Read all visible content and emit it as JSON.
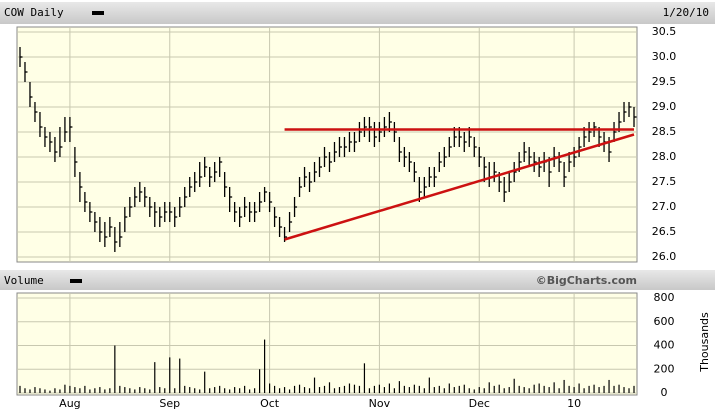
{
  "chart_data": [
    {
      "type": "ohlc",
      "title": "COW Daily",
      "date_label": "1/20/10",
      "color": "#000000",
      "xlim": [
        -0.6,
        123.6
      ],
      "ylim": [
        25.9,
        30.6
      ],
      "yticks": [
        30.5,
        {
          "value": 30,
          "label": "30.0"
        },
        29.5,
        {
          "value": 29,
          "label": "29.0"
        },
        28.5,
        {
          "value": 28,
          "label": "28.0"
        },
        27.5,
        {
          "value": 27,
          "label": "27.0"
        },
        26.5,
        {
          "value": 26,
          "label": "26.0"
        }
      ],
      "grid": true,
      "high": [
        30.2,
        29.9,
        29.5,
        29.1,
        28.9,
        28.6,
        28.5,
        28.4,
        28.6,
        28.8,
        28.8,
        28.2,
        27.7,
        27.3,
        27.1,
        26.9,
        26.8,
        26.7,
        26.8,
        26.6,
        26.7,
        27.0,
        27.2,
        27.4,
        27.5,
        27.4,
        27.2,
        27.1,
        27.0,
        27.1,
        27.1,
        27.0,
        27.2,
        27.4,
        27.6,
        27.7,
        27.9,
        28.0,
        27.8,
        27.9,
        28.0,
        27.7,
        27.4,
        27.1,
        27.0,
        27.2,
        27.1,
        27.1,
        27.3,
        27.4,
        27.3,
        27.0,
        26.8,
        26.6,
        26.9,
        27.2,
        27.6,
        27.8,
        27.7,
        27.9,
        28.0,
        28.2,
        28.1,
        28.3,
        28.4,
        28.4,
        28.5,
        28.5,
        28.7,
        28.8,
        28.8,
        28.7,
        28.7,
        28.8,
        28.9,
        28.7,
        28.4,
        28.2,
        28.1,
        27.9,
        27.6,
        27.6,
        27.8,
        27.8,
        28.1,
        28.2,
        28.4,
        28.6,
        28.6,
        28.5,
        28.6,
        28.4,
        28.2,
        28.0,
        27.9,
        27.9,
        27.7,
        27.6,
        27.7,
        27.9,
        28.1,
        28.3,
        28.2,
        28.1,
        28.0,
        28.1,
        28.0,
        28.2,
        28.1,
        27.9,
        28.1,
        28.2,
        28.4,
        28.6,
        28.7,
        28.7,
        28.6,
        28.5,
        28.4,
        28.7,
        28.9,
        29.1,
        29.1,
        29.0
      ],
      "low": [
        29.8,
        29.5,
        29.0,
        28.7,
        28.4,
        28.2,
        28.1,
        27.9,
        28.0,
        28.3,
        28.3,
        27.6,
        27.1,
        26.9,
        26.7,
        26.5,
        26.3,
        26.2,
        26.4,
        26.1,
        26.2,
        26.5,
        26.8,
        27.0,
        27.1,
        27.0,
        26.8,
        26.6,
        26.6,
        26.7,
        26.7,
        26.6,
        26.8,
        27.0,
        27.2,
        27.3,
        27.4,
        27.6,
        27.4,
        27.5,
        27.6,
        27.2,
        26.9,
        26.7,
        26.6,
        26.8,
        26.7,
        26.7,
        26.9,
        27.1,
        26.9,
        26.6,
        26.4,
        26.3,
        26.5,
        26.8,
        27.2,
        27.4,
        27.3,
        27.5,
        27.6,
        27.8,
        27.7,
        27.9,
        28.0,
        28.0,
        28.1,
        28.1,
        28.3,
        28.4,
        28.3,
        28.2,
        28.3,
        28.4,
        28.5,
        28.3,
        27.9,
        27.8,
        27.7,
        27.5,
        27.1,
        27.2,
        27.4,
        27.4,
        27.7,
        27.8,
        28.0,
        28.2,
        28.2,
        28.1,
        28.2,
        28.0,
        27.8,
        27.5,
        27.4,
        27.5,
        27.3,
        27.1,
        27.3,
        27.5,
        27.7,
        27.9,
        27.8,
        27.7,
        27.6,
        27.7,
        27.4,
        27.8,
        27.7,
        27.4,
        27.7,
        27.8,
        28.0,
        28.2,
        28.3,
        28.4,
        28.2,
        28.1,
        27.9,
        28.3,
        28.5,
        28.7,
        28.8,
        28.6
      ],
      "close": [
        30.0,
        29.7,
        29.2,
        28.9,
        28.6,
        28.4,
        28.3,
        28.1,
        28.2,
        28.5,
        28.6,
        27.9,
        27.4,
        27.1,
        26.9,
        26.7,
        26.5,
        26.4,
        26.6,
        26.3,
        26.4,
        26.8,
        27.0,
        27.2,
        27.3,
        27.2,
        27.0,
        26.9,
        26.8,
        26.9,
        26.9,
        26.8,
        27.0,
        27.2,
        27.4,
        27.5,
        27.6,
        27.8,
        27.6,
        27.7,
        27.9,
        27.4,
        27.2,
        26.9,
        26.8,
        27.0,
        26.9,
        26.9,
        27.1,
        27.3,
        27.1,
        26.8,
        26.6,
        26.4,
        26.7,
        27.0,
        27.4,
        27.6,
        27.5,
        27.7,
        27.8,
        28.0,
        27.9,
        28.1,
        28.2,
        28.2,
        28.3,
        28.3,
        28.5,
        28.6,
        28.6,
        28.4,
        28.5,
        28.6,
        28.7,
        28.5,
        28.1,
        28.0,
        27.9,
        27.7,
        27.3,
        27.4,
        27.6,
        27.6,
        27.9,
        28.0,
        28.2,
        28.4,
        28.4,
        28.3,
        28.4,
        28.2,
        28.0,
        27.8,
        27.6,
        27.7,
        27.5,
        27.3,
        27.5,
        27.7,
        27.9,
        28.1,
        28.0,
        27.9,
        27.8,
        27.9,
        27.7,
        28.0,
        27.9,
        27.6,
        27.9,
        28.0,
        28.2,
        28.4,
        28.5,
        28.6,
        28.4,
        28.3,
        28.1,
        28.5,
        28.7,
        28.9,
        29.0,
        28.8
      ],
      "trend_lines": [
        {
          "x": [
            53,
            123
          ],
          "y": [
            28.55,
            28.55
          ],
          "color": "#cc1111"
        },
        {
          "x": [
            53,
            123
          ],
          "y": [
            26.35,
            28.45
          ],
          "color": "#cc1111"
        }
      ]
    },
    {
      "type": "bar",
      "title": "Volume",
      "source": "©BigCharts.com",
      "ylabel": "Thousands",
      "color": "#000000",
      "ylim": [
        0,
        800
      ],
      "yticks": [
        800,
        600,
        400,
        200,
        0
      ],
      "grid": true,
      "xticks": [
        {
          "value": 10,
          "label": "Aug"
        },
        {
          "value": 30,
          "label": "Sep"
        },
        {
          "value": 50,
          "label": "Oct"
        },
        {
          "value": 72,
          "label": "Nov"
        },
        {
          "value": 92,
          "label": "Dec"
        },
        {
          "value": 111,
          "label": "10"
        }
      ],
      "values": [
        60,
        40,
        30,
        50,
        40,
        30,
        20,
        40,
        30,
        70,
        60,
        50,
        40,
        60,
        30,
        40,
        50,
        30,
        40,
        400,
        60,
        50,
        40,
        30,
        50,
        40,
        30,
        260,
        50,
        40,
        300,
        40,
        290,
        60,
        50,
        40,
        30,
        180,
        40,
        50,
        60,
        40,
        30,
        50,
        40,
        60,
        30,
        40,
        200,
        450,
        80,
        60,
        40,
        50,
        30,
        60,
        70,
        50,
        40,
        130,
        50,
        60,
        90,
        40,
        50,
        60,
        80,
        70,
        60,
        250,
        40,
        60,
        70,
        50,
        80,
        40,
        100,
        60,
        50,
        70,
        60,
        40,
        130,
        50,
        60,
        40,
        80,
        50,
        60,
        70,
        40,
        30,
        50,
        40,
        90,
        60,
        70,
        40,
        50,
        120,
        60,
        50,
        40,
        70,
        80,
        60,
        50,
        90,
        40,
        110,
        60,
        50,
        80,
        40,
        60,
        70,
        50,
        60,
        110,
        60,
        70,
        50,
        40,
        60
      ]
    }
  ]
}
